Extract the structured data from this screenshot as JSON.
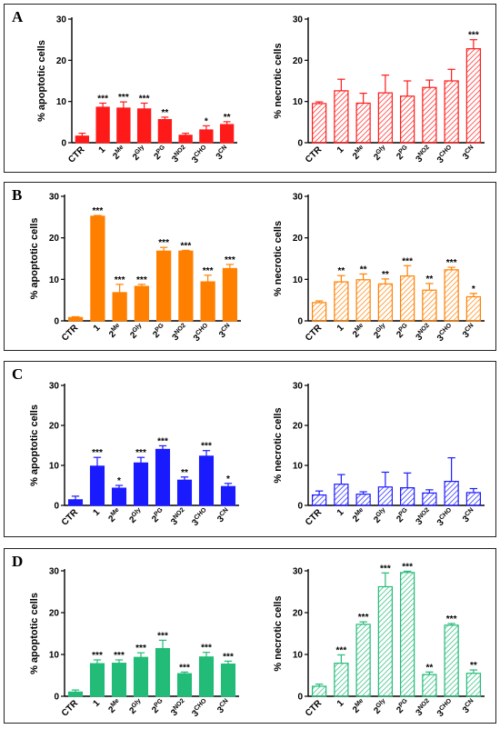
{
  "panels": [
    {
      "letter": "A",
      "color": "#ff1a1a"
    },
    {
      "letter": "B",
      "color": "#ff8000"
    },
    {
      "letter": "C",
      "color": "#1a1aff"
    },
    {
      "letter": "D",
      "color": "#22bb77"
    }
  ],
  "chart_data": [
    {
      "panel": "A",
      "type": "bar",
      "ylabel": "% apoptotic cells",
      "ylim": [
        0,
        30
      ],
      "yticks": [
        0,
        10,
        20,
        30
      ],
      "pattern": "solid",
      "categories": [
        [
          "CTR",
          ""
        ],
        [
          "1",
          ""
        ],
        [
          "2",
          "Me"
        ],
        [
          "2",
          "Gly"
        ],
        [
          "2",
          "PG"
        ],
        [
          "3",
          "NO2"
        ],
        [
          "3",
          "CHO"
        ],
        [
          "3",
          "CN"
        ]
      ],
      "values": [
        1.6,
        8.6,
        8.4,
        8.2,
        5.6,
        1.8,
        3.1,
        4.4
      ],
      "errors": [
        0.7,
        1.0,
        1.5,
        1.4,
        0.6,
        0.5,
        1.0,
        0.7
      ],
      "significance": [
        "",
        "***",
        "***",
        "***",
        "**",
        "",
        "*",
        "**"
      ]
    },
    {
      "panel": "A",
      "type": "bar",
      "ylabel": "% necrotic cells",
      "ylim": [
        0,
        30
      ],
      "yticks": [
        0,
        10,
        20,
        30
      ],
      "pattern": "hatched",
      "categories": [
        [
          "CTR",
          ""
        ],
        [
          "1",
          ""
        ],
        [
          "2",
          "Me"
        ],
        [
          "2",
          "Gly"
        ],
        [
          "2",
          "PG"
        ],
        [
          "3",
          "NO2"
        ],
        [
          "3",
          "CHO"
        ],
        [
          "3",
          "CN"
        ]
      ],
      "values": [
        9.5,
        12.6,
        9.6,
        12.1,
        11.3,
        13.4,
        15.0,
        22.8
      ],
      "errors": [
        0.4,
        2.8,
        2.4,
        4.3,
        3.7,
        1.8,
        2.8,
        2.2
      ],
      "significance": [
        "",
        "",
        "",
        "",
        "",
        "",
        "",
        "***"
      ]
    },
    {
      "panel": "B",
      "type": "bar",
      "ylabel": "% apoptotic cells",
      "ylim": [
        0,
        30
      ],
      "yticks": [
        0,
        10,
        20,
        30
      ],
      "pattern": "solid",
      "categories": [
        [
          "CTR",
          ""
        ],
        [
          "1",
          ""
        ],
        [
          "2",
          "Me"
        ],
        [
          "2",
          "Gly"
        ],
        [
          "2",
          "PG"
        ],
        [
          "3",
          "NO2"
        ],
        [
          "3",
          "CHO"
        ],
        [
          "3",
          "CN"
        ]
      ],
      "values": [
        0.8,
        25.2,
        6.8,
        8.3,
        16.8,
        16.8,
        9.4,
        12.6
      ],
      "errors": [
        0.2,
        0.2,
        2.0,
        0.5,
        0.9,
        0.2,
        1.6,
        1.0
      ],
      "significance": [
        "",
        "***",
        "***",
        "***",
        "***",
        "***",
        "***",
        "***"
      ]
    },
    {
      "panel": "B",
      "type": "bar",
      "ylabel": "% necrotic cells",
      "ylim": [
        0,
        30
      ],
      "yticks": [
        0,
        10,
        20,
        30
      ],
      "pattern": "hatched",
      "categories": [
        [
          "CTR",
          ""
        ],
        [
          "1",
          ""
        ],
        [
          "2",
          "Me"
        ],
        [
          "2",
          "Gly"
        ],
        [
          "2",
          "PG"
        ],
        [
          "3",
          "NO2"
        ],
        [
          "3",
          "CHO"
        ],
        [
          "3",
          "CN"
        ]
      ],
      "values": [
        4.4,
        9.4,
        9.9,
        8.9,
        10.8,
        7.4,
        12.3,
        5.8
      ],
      "errors": [
        0.4,
        1.5,
        1.4,
        1.2,
        2.5,
        1.6,
        0.6,
        0.8
      ],
      "significance": [
        "",
        "**",
        "**",
        "**",
        "***",
        "**",
        "***",
        "*"
      ]
    },
    {
      "panel": "C",
      "type": "bar",
      "ylabel": "% apoptotic cells",
      "ylim": [
        0,
        30
      ],
      "yticks": [
        0,
        10,
        20,
        30
      ],
      "pattern": "solid",
      "categories": [
        [
          "CTR",
          ""
        ],
        [
          "1",
          ""
        ],
        [
          "2",
          "Me"
        ],
        [
          "2",
          "Gly"
        ],
        [
          "2",
          "PG"
        ],
        [
          "3",
          "NO2"
        ],
        [
          "3",
          "CHO"
        ],
        [
          "3",
          "CN"
        ]
      ],
      "values": [
        1.4,
        9.8,
        4.3,
        10.6,
        14.0,
        6.3,
        12.3,
        4.7
      ],
      "errors": [
        0.9,
        2.2,
        0.7,
        1.4,
        0.9,
        0.8,
        1.4,
        0.8
      ],
      "significance": [
        "",
        "***",
        "*",
        "***",
        "***",
        "**",
        "***",
        "*"
      ]
    },
    {
      "panel": "C",
      "type": "bar",
      "ylabel": "% necrotic cells",
      "ylim": [
        0,
        30
      ],
      "yticks": [
        0,
        10,
        20,
        30
      ],
      "pattern": "hatched",
      "categories": [
        [
          "CTR",
          ""
        ],
        [
          "1",
          ""
        ],
        [
          "2",
          "Me"
        ],
        [
          "2",
          "Gly"
        ],
        [
          "2",
          "PG"
        ],
        [
          "3",
          "NO2"
        ],
        [
          "3",
          "CHO"
        ],
        [
          "3",
          "CN"
        ]
      ],
      "values": [
        2.6,
        5.3,
        2.8,
        4.6,
        4.4,
        3.1,
        6.0,
        3.2
      ],
      "errors": [
        1.0,
        2.4,
        0.6,
        3.7,
        3.7,
        0.8,
        5.9,
        1.0
      ],
      "significance": [
        "",
        "",
        "",
        "",
        "",
        "",
        "",
        ""
      ]
    },
    {
      "panel": "D",
      "type": "bar",
      "ylabel": "% apoptotic cells",
      "ylim": [
        0,
        30
      ],
      "yticks": [
        0,
        10,
        20,
        30
      ],
      "pattern": "solid",
      "categories": [
        [
          "CTR",
          ""
        ],
        [
          "1",
          ""
        ],
        [
          "2",
          "Me"
        ],
        [
          "2",
          "Gly"
        ],
        [
          "2",
          "PG"
        ],
        [
          "3",
          "NO2"
        ],
        [
          "3",
          "CHO"
        ],
        [
          "3",
          "CN"
        ]
      ],
      "values": [
        1.0,
        7.8,
        7.9,
        9.3,
        11.4,
        5.4,
        9.4,
        7.7
      ],
      "errors": [
        0.5,
        0.9,
        0.8,
        1.1,
        2.0,
        0.4,
        1.1,
        0.7
      ],
      "significance": [
        "",
        "***",
        "***",
        "***",
        "***",
        "***",
        "***",
        "***"
      ]
    },
    {
      "panel": "D",
      "type": "bar",
      "ylabel": "% necrotic cells",
      "ylim": [
        0,
        30
      ],
      "yticks": [
        0,
        10,
        20,
        30
      ],
      "pattern": "hatched",
      "categories": [
        [
          "CTR",
          ""
        ],
        [
          "1",
          ""
        ],
        [
          "2",
          "Me"
        ],
        [
          "2",
          "Gly"
        ],
        [
          "2",
          "PG"
        ],
        [
          "3",
          "NO2"
        ],
        [
          "3",
          "CHO"
        ],
        [
          "3",
          "CN"
        ]
      ],
      "values": [
        2.4,
        7.9,
        17.2,
        26.2,
        29.6,
        5.2,
        17.0,
        5.5
      ],
      "errors": [
        0.5,
        2.0,
        0.6,
        3.3,
        0.3,
        0.6,
        0.4,
        0.8
      ],
      "significance": [
        "",
        "***",
        "***",
        "***",
        "***",
        "**",
        "***",
        "**"
      ]
    }
  ]
}
